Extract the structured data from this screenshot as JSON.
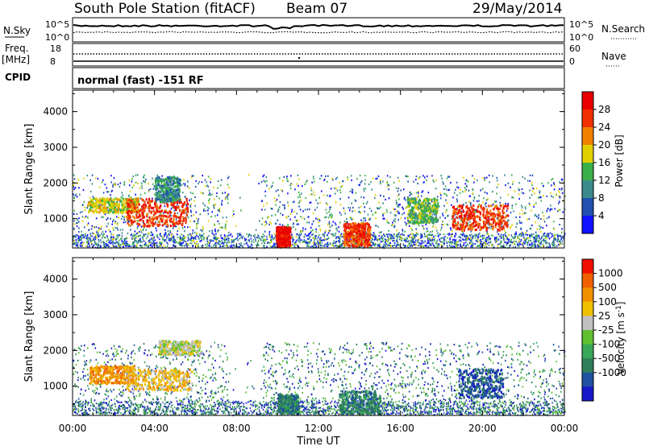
{
  "header": {
    "station": "South Pole Station (fitACF)",
    "beam": "Beam 07",
    "date": "29/May/2014"
  },
  "nsky_panel": {
    "left_label": "N.Sky",
    "left_ticks": [
      "10^5",
      "10^0"
    ],
    "right_label": "N.Search",
    "right_ticks": [
      "10^5",
      "10^0"
    ]
  },
  "freq_panel": {
    "left_label_1": "Freq.",
    "left_label_2": "[MHz]",
    "left_ticks": [
      "18",
      "8"
    ],
    "right_label": "Nave",
    "right_ticks": [
      "60",
      "0"
    ]
  },
  "cpid": {
    "label": "CPID",
    "mode": "normal (fast) -151 RF"
  },
  "chart_data": [
    {
      "type": "heatmap",
      "name": "power",
      "xlabel": "",
      "ylabel": "Slant Range [km]",
      "ylim": [
        180,
        4600
      ],
      "y_ticks": [
        "1000",
        "2000",
        "3000",
        "4000"
      ],
      "colorbar_label": "Power [dB]",
      "colorbar_ticks": [
        "4",
        "8",
        "12",
        "16",
        "20",
        "24",
        "28"
      ],
      "colorbar_colors": [
        "#1010ff",
        "#2050b0",
        "#3a8a8a",
        "#3cb048",
        "#e0d000",
        "#f08000",
        "#f03000",
        "#e80000"
      ],
      "regions_hours_km": [
        {
          "x": [
            0.7,
            3.2
          ],
          "y": [
            1200,
            1600
          ],
          "level": 4
        },
        {
          "x": [
            2.6,
            5.6
          ],
          "y": [
            800,
            1600
          ],
          "level": 6
        },
        {
          "x": [
            4.0,
            5.2
          ],
          "y": [
            1500,
            2200
          ],
          "level": 2
        },
        {
          "x": [
            9.9,
            10.6
          ],
          "y": [
            250,
            800
          ],
          "level": 7
        },
        {
          "x": [
            13.2,
            14.5
          ],
          "y": [
            250,
            900
          ],
          "level": 6
        },
        {
          "x": [
            18.5,
            21.2
          ],
          "y": [
            700,
            1400
          ],
          "level": 6
        },
        {
          "x": [
            16.3,
            17.8
          ],
          "y": [
            900,
            1600
          ],
          "level": 3
        }
      ]
    },
    {
      "type": "heatmap",
      "name": "velocity",
      "xlabel": "Time UT",
      "ylabel": "Slant Range [km]",
      "ylim": [
        180,
        4600
      ],
      "x_ticks": [
        "00:00",
        "04:00",
        "08:00",
        "12:00",
        "16:00",
        "20:00",
        "00:00"
      ],
      "y_ticks": [
        "1000",
        "2000",
        "3000",
        "4000"
      ],
      "colorbar_label": "Velocity [m s",
      "colorbar_label_sup": "-1",
      "colorbar_label_end": "]",
      "colorbar_ticks": [
        "1000",
        "500",
        "100",
        "25",
        "-25",
        "-100",
        "-500",
        "-1000"
      ],
      "colorbar_colors": [
        "#1818c8",
        "#2050a0",
        "#2f7f5a",
        "#38a858",
        "#60c030",
        "#c0c0c0",
        "#f0c000",
        "#f09000",
        "#f06000",
        "#f01000"
      ],
      "regions_hours_km": [
        {
          "x": [
            0.8,
            3.0
          ],
          "y": [
            1100,
            1600
          ],
          "level": 7
        },
        {
          "x": [
            2.6,
            5.8
          ],
          "y": [
            900,
            1500
          ],
          "level": 6
        },
        {
          "x": [
            4.2,
            6.2
          ],
          "y": [
            1900,
            2300
          ],
          "level": 5
        },
        {
          "x": [
            10.0,
            11.0
          ],
          "y": [
            250,
            800
          ],
          "level": 2
        },
        {
          "x": [
            13.0,
            15.0
          ],
          "y": [
            250,
            900
          ],
          "level": 2
        },
        {
          "x": [
            18.8,
            21.0
          ],
          "y": [
            700,
            1500
          ],
          "level": 1
        }
      ]
    }
  ]
}
